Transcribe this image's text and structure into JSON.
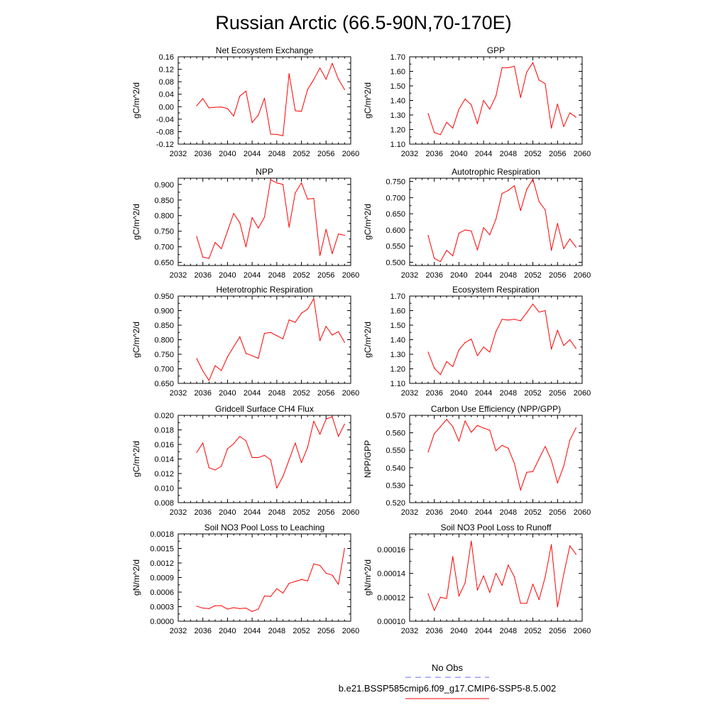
{
  "figure": {
    "title": "Russian Arctic (66.5-90N,70-170E)",
    "line_color": "#ff0000",
    "obs_color": "#6666ff",
    "legend": {
      "obs_label": "No Obs",
      "model_label": "b.e21.BSSP585cmip6.f09_g17.CMIP6-SSP5-8.5.002"
    }
  },
  "chart_data": [
    {
      "type": "line",
      "title": "Net Ecosystem Exchange",
      "ylabel": "gC/m^2/d",
      "xlabel": "",
      "xlim": [
        2032,
        2060
      ],
      "xticks": [
        "2032",
        "2036",
        "2040",
        "2044",
        "2048",
        "2052",
        "2056",
        "2060"
      ],
      "ylim": [
        -0.12,
        0.16
      ],
      "yticks": [
        "-0.12",
        "-0.08",
        "-0.04",
        "0.00",
        "0.04",
        "0.08",
        "0.12",
        "0.16"
      ],
      "x": [
        2035,
        2036,
        2037,
        2038,
        2039,
        2040,
        2041,
        2042,
        2043,
        2044,
        2045,
        2046,
        2047,
        2048,
        2049,
        2050,
        2051,
        2052,
        2053,
        2054,
        2055,
        2056,
        2057,
        2058,
        2059
      ],
      "series": [
        {
          "values": [
            0.003,
            0.026,
            -0.004,
            -0.002,
            -0.001,
            -0.006,
            -0.03,
            0.034,
            0.05,
            -0.051,
            -0.027,
            0.027,
            -0.088,
            -0.089,
            -0.093,
            0.106,
            -0.013,
            -0.015,
            0.055,
            0.087,
            0.124,
            0.088,
            0.139,
            0.088,
            0.055
          ]
        }
      ]
    },
    {
      "type": "line",
      "title": "GPP",
      "ylabel": "gC/m^2/d",
      "xlabel": "",
      "xlim": [
        2032,
        2060
      ],
      "xticks": [
        "2032",
        "2036",
        "2040",
        "2044",
        "2048",
        "2052",
        "2056",
        "2060"
      ],
      "ylim": [
        1.1,
        1.7
      ],
      "yticks": [
        "1.10",
        "1.20",
        "1.30",
        "1.40",
        "1.50",
        "1.60",
        "1.70"
      ],
      "x": [
        2035,
        2036,
        2037,
        2038,
        2039,
        2040,
        2041,
        2042,
        2043,
        2044,
        2045,
        2046,
        2047,
        2048,
        2049,
        2050,
        2051,
        2052,
        2053,
        2054,
        2055,
        2056,
        2057,
        2058,
        2059
      ],
      "series": [
        {
          "values": [
            1.31,
            1.18,
            1.165,
            1.25,
            1.21,
            1.34,
            1.41,
            1.37,
            1.24,
            1.4,
            1.34,
            1.43,
            1.625,
            1.625,
            1.635,
            1.42,
            1.595,
            1.66,
            1.54,
            1.515,
            1.21,
            1.375,
            1.22,
            1.315,
            1.285
          ]
        }
      ]
    },
    {
      "type": "line",
      "title": "NPP",
      "ylabel": "gC/m^2/d",
      "xlabel": "",
      "xlim": [
        2032,
        2060
      ],
      "xticks": [
        "2032",
        "2036",
        "2040",
        "2044",
        "2048",
        "2052",
        "2056",
        "2060"
      ],
      "ylim": [
        0.64,
        0.92
      ],
      "yticks": [
        "0.650",
        "0.700",
        "0.750",
        "0.800",
        "0.850",
        "0.900"
      ],
      "x": [
        2035,
        2036,
        2037,
        2038,
        2039,
        2040,
        2041,
        2042,
        2043,
        2044,
        2045,
        2046,
        2047,
        2048,
        2049,
        2050,
        2051,
        2052,
        2053,
        2054,
        2055,
        2056,
        2057,
        2058,
        2059
      ],
      "series": [
        {
          "values": [
            0.733,
            0.667,
            0.663,
            0.714,
            0.694,
            0.75,
            0.807,
            0.777,
            0.7,
            0.794,
            0.76,
            0.795,
            0.915,
            0.905,
            0.9,
            0.763,
            0.873,
            0.905,
            0.853,
            0.855,
            0.672,
            0.756,
            0.678,
            0.741,
            0.737
          ]
        }
      ]
    },
    {
      "type": "line",
      "title": "Autotrophic Respiration",
      "ylabel": "gC/m^2/d",
      "xlabel": "",
      "xlim": [
        2032,
        2060
      ],
      "xticks": [
        "2032",
        "2036",
        "2040",
        "2044",
        "2048",
        "2052",
        "2056",
        "2060"
      ],
      "ylim": [
        0.49,
        0.76
      ],
      "yticks": [
        "0.500",
        "0.550",
        "0.600",
        "0.650",
        "0.700",
        "0.750"
      ],
      "x": [
        2035,
        2036,
        2037,
        2038,
        2039,
        2040,
        2041,
        2042,
        2043,
        2044,
        2045,
        2046,
        2047,
        2048,
        2049,
        2050,
        2051,
        2052,
        2053,
        2054,
        2055,
        2056,
        2057,
        2058,
        2059
      ],
      "series": [
        {
          "values": [
            0.583,
            0.512,
            0.502,
            0.537,
            0.52,
            0.59,
            0.6,
            0.597,
            0.538,
            0.607,
            0.585,
            0.633,
            0.713,
            0.722,
            0.737,
            0.66,
            0.725,
            0.757,
            0.688,
            0.662,
            0.537,
            0.62,
            0.542,
            0.572,
            0.547
          ]
        }
      ]
    },
    {
      "type": "line",
      "title": "Heterotrophic Respiration",
      "ylabel": "gC/m^2/d",
      "xlabel": "",
      "xlim": [
        2032,
        2060
      ],
      "xticks": [
        "2032",
        "2036",
        "2040",
        "2044",
        "2048",
        "2052",
        "2056",
        "2060"
      ],
      "ylim": [
        0.65,
        0.95
      ],
      "yticks": [
        "0.650",
        "0.700",
        "0.750",
        "0.800",
        "0.850",
        "0.900",
        "0.950"
      ],
      "x": [
        2035,
        2036,
        2037,
        2038,
        2039,
        2040,
        2041,
        2042,
        2043,
        2044,
        2045,
        2046,
        2047,
        2048,
        2049,
        2050,
        2051,
        2052,
        2053,
        2054,
        2055,
        2056,
        2057,
        2058,
        2059
      ],
      "series": [
        {
          "values": [
            0.735,
            0.693,
            0.66,
            0.711,
            0.694,
            0.741,
            0.776,
            0.81,
            0.753,
            0.745,
            0.736,
            0.822,
            0.825,
            0.814,
            0.803,
            0.868,
            0.86,
            0.891,
            0.905,
            0.941,
            0.797,
            0.846,
            0.816,
            0.828,
            0.791
          ]
        }
      ]
    },
    {
      "type": "line",
      "title": "Ecosystem Respiration",
      "ylabel": "gC/m^2/d",
      "xlabel": "",
      "xlim": [
        2032,
        2060
      ],
      "xticks": [
        "2032",
        "2036",
        "2040",
        "2044",
        "2048",
        "2052",
        "2056",
        "2060"
      ],
      "ylim": [
        1.1,
        1.7
      ],
      "yticks": [
        "1.10",
        "1.20",
        "1.30",
        "1.40",
        "1.50",
        "1.60",
        "1.70"
      ],
      "x": [
        2035,
        2036,
        2037,
        2038,
        2039,
        2040,
        2041,
        2042,
        2043,
        2044,
        2045,
        2046,
        2047,
        2048,
        2049,
        2050,
        2051,
        2052,
        2053,
        2054,
        2055,
        2056,
        2057,
        2058,
        2059
      ],
      "series": [
        {
          "values": [
            1.315,
            1.205,
            1.16,
            1.25,
            1.215,
            1.33,
            1.38,
            1.405,
            1.29,
            1.35,
            1.315,
            1.455,
            1.54,
            1.535,
            1.54,
            1.53,
            1.585,
            1.645,
            1.59,
            1.6,
            1.335,
            1.465,
            1.36,
            1.4,
            1.34
          ]
        }
      ]
    },
    {
      "type": "line",
      "title": "Gridcell Surface CH4 Flux",
      "ylabel": "gC/m^2/d",
      "xlabel": "",
      "xlim": [
        2032,
        2060
      ],
      "xticks": [
        "2032",
        "2036",
        "2040",
        "2044",
        "2048",
        "2052",
        "2056",
        "2060"
      ],
      "ylim": [
        0.008,
        0.02
      ],
      "yticks": [
        "0.008",
        "0.010",
        "0.012",
        "0.014",
        "0.016",
        "0.018",
        "0.020"
      ],
      "x": [
        2035,
        2036,
        2037,
        2038,
        2039,
        2040,
        2041,
        2042,
        2043,
        2044,
        2045,
        2046,
        2047,
        2048,
        2049,
        2050,
        2051,
        2052,
        2053,
        2054,
        2055,
        2056,
        2057,
        2058,
        2059
      ],
      "series": [
        {
          "values": [
            0.0149,
            0.0162,
            0.0128,
            0.0125,
            0.013,
            0.0154,
            0.0161,
            0.0171,
            0.0165,
            0.0142,
            0.0142,
            0.0145,
            0.0139,
            0.01,
            0.0116,
            0.0139,
            0.0162,
            0.0135,
            0.0156,
            0.0192,
            0.0174,
            0.0195,
            0.0198,
            0.0171,
            0.0188
          ]
        }
      ]
    },
    {
      "type": "line",
      "title": "Carbon Use Efficiency (NPP/GPP)",
      "ylabel": "NPP/GPP",
      "xlabel": "",
      "xlim": [
        2032,
        2060
      ],
      "xticks": [
        "2032",
        "2036",
        "2040",
        "2044",
        "2048",
        "2052",
        "2056",
        "2060"
      ],
      "ylim": [
        0.52,
        0.57
      ],
      "yticks": [
        "0.520",
        "0.530",
        "0.540",
        "0.550",
        "0.560",
        "0.570"
      ],
      "x": [
        2035,
        2036,
        2037,
        2038,
        2039,
        2040,
        2041,
        2042,
        2043,
        2044,
        2045,
        2046,
        2047,
        2048,
        2049,
        2050,
        2051,
        2052,
        2053,
        2054,
        2055,
        2056,
        2057,
        2058,
        2059
      ],
      "series": [
        {
          "values": [
            0.549,
            0.5595,
            0.5635,
            0.5677,
            0.5635,
            0.5552,
            0.5668,
            0.5603,
            0.5642,
            0.5627,
            0.5615,
            0.5497,
            0.5528,
            0.5512,
            0.5425,
            0.5272,
            0.5374,
            0.5378,
            0.5451,
            0.5522,
            0.5443,
            0.5313,
            0.5408,
            0.5558,
            0.5628
          ]
        }
      ]
    },
    {
      "type": "line",
      "title": "Soil NO3 Pool Loss to Leaching",
      "ylabel": "gN/m^2/d",
      "xlabel": "",
      "xlim": [
        2032,
        2060
      ],
      "xticks": [
        "2032",
        "2036",
        "2040",
        "2044",
        "2048",
        "2052",
        "2056",
        "2060"
      ],
      "ylim": [
        0.0,
        0.0018
      ],
      "yticks": [
        "0.0000",
        "0.0003",
        "0.0006",
        "0.0009",
        "0.0012",
        "0.0015",
        "0.0018"
      ],
      "x": [
        2035,
        2036,
        2037,
        2038,
        2039,
        2040,
        2041,
        2042,
        2043,
        2044,
        2045,
        2046,
        2047,
        2048,
        2049,
        2050,
        2051,
        2052,
        2053,
        2054,
        2055,
        2056,
        2057,
        2058,
        2059
      ],
      "series": [
        {
          "values": [
            0.00031,
            0.00027,
            0.00026,
            0.00032,
            0.00032,
            0.00025,
            0.00028,
            0.00026,
            0.00027,
            0.0002,
            0.00025,
            0.00052,
            0.00051,
            0.00067,
            0.00058,
            0.00078,
            0.00082,
            0.00086,
            0.00083,
            0.00118,
            0.00115,
            0.00099,
            0.00095,
            0.00076,
            0.0015
          ]
        }
      ]
    },
    {
      "type": "line",
      "title": "Soil NO3 Pool Loss to Runoff",
      "ylabel": "gN/m^2/d",
      "xlabel": "",
      "xlim": [
        2032,
        2060
      ],
      "xticks": [
        "2032",
        "2036",
        "2040",
        "2044",
        "2048",
        "2052",
        "2056",
        "2060"
      ],
      "ylim": [
        0.0001,
        0.000173
      ],
      "yticks": [
        "0.00010",
        "0.00012",
        "0.00014",
        "0.00016"
      ],
      "x": [
        2035,
        2036,
        2037,
        2038,
        2039,
        2040,
        2041,
        2042,
        2043,
        2044,
        2045,
        2046,
        2047,
        2048,
        2049,
        2050,
        2051,
        2052,
        2053,
        2054,
        2055,
        2056,
        2057,
        2058,
        2059
      ],
      "series": [
        {
          "values": [
            0.000123,
            0.000109,
            0.00012,
            0.000119,
            0.000154,
            0.000121,
            0.000132,
            0.000167,
            0.000126,
            0.000138,
            0.000124,
            0.00014,
            0.00013,
            0.000147,
            0.000137,
            0.000115,
            0.000115,
            0.000131,
            0.000118,
            0.000137,
            0.000164,
            0.000112,
            0.000139,
            0.000163,
            0.000156
          ]
        }
      ]
    }
  ]
}
